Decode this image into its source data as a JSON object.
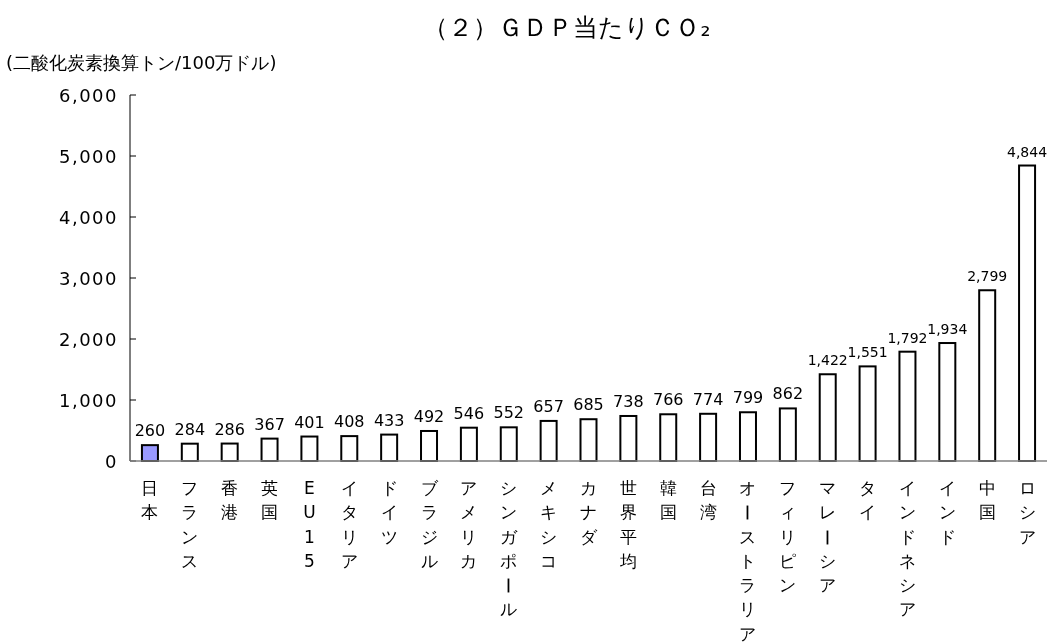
{
  "chart_data": {
    "type": "bar",
    "title": "（２）ＧＤＰ当たりＣＯ₂",
    "ylabel": "(二酸化炭素換算トン/100万ドル)",
    "categories": [
      "日本",
      "フランス",
      "香港",
      "英国",
      "EU15",
      "イタリア",
      "ドイツ",
      "ブラジル",
      "アメリカ",
      "シンガポール",
      "メキシコ",
      "カナダ",
      "世界平均",
      "韓国",
      "台湾",
      "オーストラリア",
      "フィリピン",
      "マレーシア",
      "タイ",
      "インドネシア",
      "インド",
      "中国",
      "ロシア"
    ],
    "values": [
      260,
      284,
      286,
      367,
      401,
      408,
      433,
      492,
      546,
      552,
      657,
      685,
      738,
      766,
      774,
      799,
      862,
      1422,
      1551,
      1792,
      1934,
      2799,
      4844
    ],
    "colors": [
      "#9999ff",
      "#ffffff",
      "#ffffff",
      "#ffffff",
      "#ffffff",
      "#ffffff",
      "#ffffff",
      "#ffffff",
      "#ffffff",
      "#ffffff",
      "#ffffff",
      "#ffffff",
      "#ffffff",
      "#ffffff",
      "#ffffff",
      "#ffffff",
      "#ffffff",
      "#ffffff",
      "#ffffff",
      "#ffffff",
      "#ffffff",
      "#ffffff",
      "#ffffff"
    ],
    "value_labels": [
      "260",
      "284",
      "286",
      "367",
      "401",
      "408",
      "433",
      "492",
      "546",
      "552",
      "657",
      "685",
      "738",
      "766",
      "774",
      "799",
      "862",
      "1,422",
      "1,551",
      "1,792",
      "1,934",
      "2,799",
      "4,844"
    ],
    "ylim": [
      0,
      6000
    ],
    "yticks": [
      0,
      {
        "value": 1000,
        "label": "1,000"
      },
      {
        "value": 2000,
        "label": "2,000"
      },
      {
        "value": 3000,
        "label": "3,000"
      },
      {
        "value": 4000,
        "label": "4,000"
      },
      {
        "value": 5000,
        "label": "5,000"
      },
      {
        "value": 6000,
        "label": "6,000"
      }
    ]
  }
}
